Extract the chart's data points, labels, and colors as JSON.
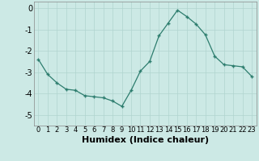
{
  "x": [
    0,
    1,
    2,
    3,
    4,
    5,
    6,
    7,
    8,
    9,
    10,
    11,
    12,
    13,
    14,
    15,
    16,
    17,
    18,
    19,
    20,
    21,
    22,
    23
  ],
  "y": [
    -2.4,
    -3.1,
    -3.5,
    -3.8,
    -3.85,
    -4.1,
    -4.15,
    -4.2,
    -4.35,
    -4.6,
    -3.85,
    -2.95,
    -2.5,
    -1.3,
    -0.7,
    -0.1,
    -0.4,
    -0.75,
    -1.25,
    -2.25,
    -2.65,
    -2.7,
    -2.75,
    -3.2
  ],
  "xlabel": "Humidex (Indice chaleur)",
  "ylim": [
    -5.5,
    0.3
  ],
  "xlim": [
    -0.5,
    23.5
  ],
  "yticks": [
    0,
    -1,
    -2,
    -3,
    -4,
    -5
  ],
  "xticks": [
    0,
    1,
    2,
    3,
    4,
    5,
    6,
    7,
    8,
    9,
    10,
    11,
    12,
    13,
    14,
    15,
    16,
    17,
    18,
    19,
    20,
    21,
    22,
    23
  ],
  "line_color": "#2d7d6e",
  "marker_color": "#2d7d6e",
  "bg_color": "#cce9e5",
  "grid_color": "#b0d4cf",
  "xlabel_fontsize": 8,
  "ytick_fontsize": 7,
  "xtick_fontsize": 6
}
